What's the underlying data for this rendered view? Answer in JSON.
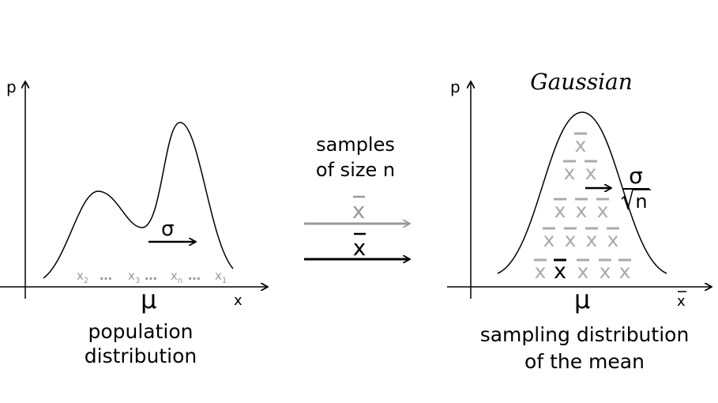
{
  "left_panel": {
    "y_axis_label": "p",
    "x_axis_label": "x",
    "mu_label": "μ",
    "sigma_label": "σ",
    "sample_labels": [
      {
        "base": "x",
        "sub": "2"
      },
      {
        "base": "x",
        "sub": "3"
      },
      {
        "base": "x",
        "sub": "n"
      },
      {
        "base": "x",
        "sub": "1"
      }
    ],
    "dots": "…",
    "caption_line1": "population",
    "caption_line2": "distribution"
  },
  "middle": {
    "title_line1": "samples",
    "title_line2": "of size n",
    "xbar_label": "x"
  },
  "right_panel": {
    "title": "Gaussian",
    "y_axis_label": "p",
    "x_axis_label": "x",
    "mu_label": "μ",
    "sigma_label": "σ",
    "sqrt_n_label": "n",
    "xbar_label": "x",
    "caption_line1": "sampling distribution",
    "caption_line2": "of the mean"
  },
  "colors": {
    "ink": "#000000",
    "grey": "#999999",
    "light_grey": "#aaaaaa"
  }
}
